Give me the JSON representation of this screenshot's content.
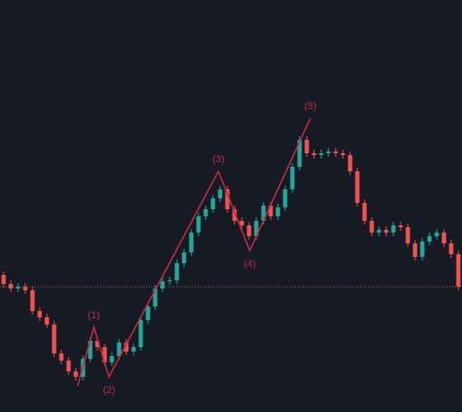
{
  "chart_data": {
    "type": "candlestick",
    "xlim": [
      -0.5,
      63.5
    ],
    "ylim": [
      0,
      457
    ],
    "up_color": "#26a69a",
    "down_color": "#ef5350",
    "background": "#161a25",
    "open": [
      152,
      142,
      137,
      139,
      135,
      112,
      105,
      97,
      65,
      57,
      45,
      39,
      59,
      79,
      72,
      55,
      62,
      77,
      67,
      72,
      102,
      117,
      137,
      145,
      146,
      165,
      177,
      199,
      217,
      225,
      237,
      247,
      225,
      212,
      207,
      195,
      212,
      229,
      217,
      227,
      247,
      272,
      302,
      287,
      285,
      287,
      289,
      287,
      285,
      267,
      232,
      212,
      199,
      202,
      199,
      207,
      205,
      187,
      172,
      189,
      195,
      199,
      187,
      175
    ],
    "high": [
      156,
      146,
      143,
      143,
      139,
      116,
      109,
      101,
      69,
      61,
      49,
      63,
      83,
      83,
      76,
      66,
      81,
      81,
      76,
      106,
      121,
      141,
      149,
      150,
      169,
      181,
      203,
      221,
      229,
      241,
      251,
      251,
      229,
      216,
      211,
      216,
      233,
      233,
      231,
      251,
      276,
      306,
      306,
      291,
      291,
      293,
      293,
      291,
      289,
      271,
      236,
      216,
      206,
      206,
      211,
      211,
      209,
      191,
      193,
      199,
      203,
      203,
      191,
      179
    ],
    "low": [
      138,
      133,
      133,
      131,
      108,
      101,
      93,
      61,
      53,
      41,
      35,
      35,
      55,
      68,
      51,
      51,
      58,
      63,
      63,
      68,
      98,
      113,
      133,
      141,
      142,
      161,
      173,
      195,
      213,
      221,
      233,
      221,
      208,
      203,
      191,
      191,
      208,
      213,
      213,
      223,
      243,
      268,
      283,
      281,
      281,
      283,
      283,
      281,
      263,
      228,
      208,
      195,
      195,
      195,
      195,
      201,
      183,
      168,
      168,
      185,
      191,
      183,
      171,
      135
    ],
    "close": [
      142,
      137,
      139,
      135,
      112,
      105,
      97,
      65,
      57,
      45,
      39,
      59,
      79,
      72,
      55,
      62,
      77,
      67,
      72,
      102,
      117,
      137,
      145,
      146,
      165,
      177,
      199,
      217,
      225,
      237,
      247,
      225,
      212,
      207,
      195,
      212,
      229,
      217,
      227,
      247,
      272,
      302,
      287,
      285,
      287,
      289,
      287,
      285,
      267,
      232,
      212,
      199,
      202,
      199,
      207,
      205,
      187,
      172,
      189,
      195,
      199,
      187,
      175,
      139
    ],
    "price_line_color": "#b5654a",
    "wave": {
      "color": "#c62a3c",
      "x": [
        10.25,
        12.5,
        14.6,
        29.75,
        34.1,
        42.5
      ],
      "y": [
        29,
        94,
        39,
        267,
        179,
        326
      ],
      "labels": [
        "(1)",
        "(2)",
        "(3)",
        "(4)",
        "(5)"
      ]
    }
  }
}
